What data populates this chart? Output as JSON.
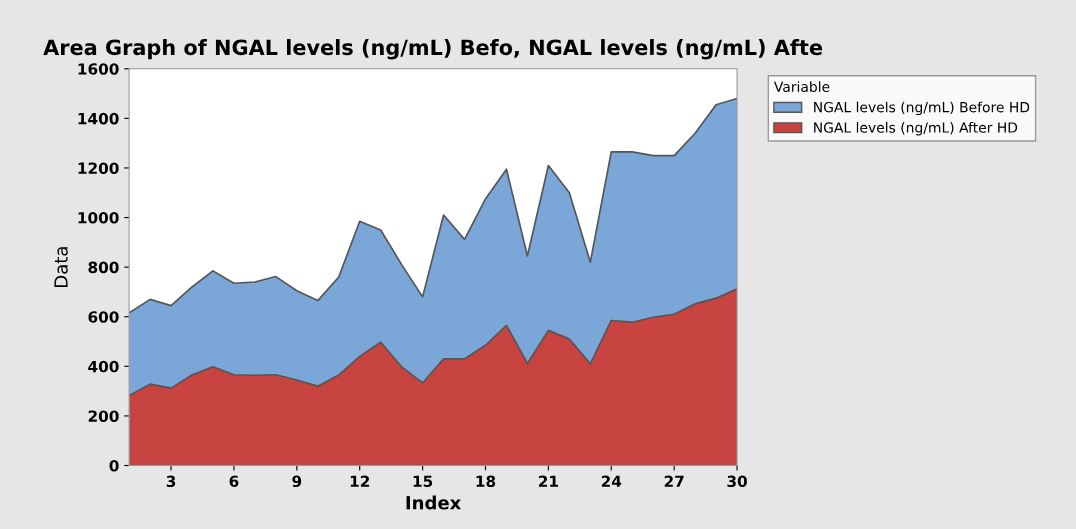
{
  "chart_data": {
    "type": "area",
    "title": "Area Graph of NGAL levels (ng/mL) Befo, NGAL levels (ng/mL) Afte",
    "xlabel": "Index",
    "ylabel": "Data",
    "legend_title": "Variable",
    "x": [
      1,
      2,
      3,
      4,
      5,
      6,
      7,
      8,
      9,
      10,
      11,
      12,
      13,
      14,
      15,
      16,
      17,
      18,
      19,
      20,
      21,
      22,
      23,
      24,
      25,
      26,
      27,
      28,
      29,
      30
    ],
    "stacked": true,
    "series": [
      {
        "name": "NGAL levels (ng/mL) After HD",
        "color": "#c84440",
        "values": [
          282,
          328,
          312,
          365,
          398,
          366,
          364,
          366,
          345,
          320,
          365,
          440,
          497,
          398,
          333,
          430,
          430,
          485,
          565,
          412,
          545,
          510,
          410,
          585,
          578,
          598,
          610,
          652,
          675,
          712
        ]
      },
      {
        "name": "NGAL levels (ng/mL) Before HD",
        "color": "#7ba6d8",
        "values": [
          333,
          342,
          333,
          355,
          387,
          369,
          376,
          396,
          360,
          345,
          395,
          545,
          453,
          412,
          347,
          580,
          482,
          590,
          630,
          433,
          665,
          590,
          410,
          680,
          687,
          652,
          640,
          688,
          780,
          768
        ]
      }
    ],
    "xlim": [
      1,
      30
    ],
    "xticks": [
      3,
      6,
      9,
      12,
      15,
      18,
      21,
      24,
      27,
      30
    ],
    "ylim": [
      0,
      1600
    ],
    "yticks": [
      0,
      200,
      400,
      600,
      800,
      1000,
      1200,
      1400,
      1600
    ],
    "grid": false,
    "legend": "top right"
  }
}
